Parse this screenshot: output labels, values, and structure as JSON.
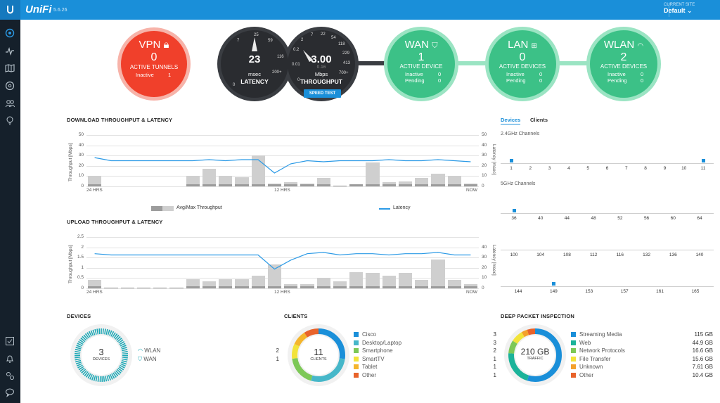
{
  "header": {
    "brand": "UniFi",
    "version": "5.6.26",
    "site_label": "CURRENT SITE",
    "site_value": "Default ⌄"
  },
  "gauges": {
    "vpn": {
      "title": "VPN",
      "value": "0",
      "subtitle": "ACTIVE TUNNELS",
      "inactive_label": "Inactive",
      "inactive_value": "1"
    },
    "latency": {
      "value": "23",
      "unit": "msec",
      "label": "LATENCY",
      "ticks": [
        "0",
        "7",
        "25",
        "59",
        "116",
        "200+"
      ],
      "needle_value": 23
    },
    "throughput": {
      "value": "3.00",
      "unit": "Mbps",
      "sub": "0.16",
      "label": "THROUGHPUT",
      "ticks": [
        "0",
        "0.01",
        "0.2",
        "2",
        "7",
        "22",
        "54",
        "118",
        "229",
        "413",
        "700+"
      ],
      "button": "SPEED TEST"
    },
    "wan": {
      "title": "WAN",
      "value": "1",
      "subtitle": "ACTIVE DEVICE",
      "inactive_label": "Inactive",
      "inactive_value": "0",
      "pending_label": "Pending",
      "pending_value": "0"
    },
    "lan": {
      "title": "LAN",
      "value": "0",
      "subtitle": "ACTIVE DEVICES",
      "inactive_label": "Inactive",
      "inactive_value": "0",
      "pending_label": "Pending",
      "pending_value": "0"
    },
    "wlan": {
      "title": "WLAN",
      "value": "2",
      "subtitle": "ACTIVE DEVICES",
      "inactive_label": "Inactive",
      "inactive_value": "0",
      "pending_label": "Pending",
      "pending_value": "0"
    }
  },
  "download": {
    "title": "DOWNLOAD THROUGHPUT & LATENCY",
    "ylabel": "Throughput [Mbps]",
    "y2label": "Latency [msec]",
    "yticks": [
      "50",
      "40",
      "30",
      "20",
      "10",
      "0"
    ],
    "xticks": [
      "24 HRS",
      "12 HRS",
      "NOW"
    ],
    "legend_avgmax": "Avg/Max Throughput",
    "legend_latency": "Latency"
  },
  "upload": {
    "title": "UPLOAD THROUGHPUT & LATENCY",
    "ylabel": "Throughput [Mbps]",
    "y2label": "Latency [msec]",
    "yticks": [
      "2.5",
      "2",
      "1.5",
      "1",
      "0.5",
      "0"
    ],
    "y2ticks": [
      "40",
      "30",
      "20",
      "10",
      "0"
    ],
    "xticks": [
      "24 HRS",
      "12 HRS",
      "NOW"
    ]
  },
  "chart_data": [
    {
      "type": "bar",
      "title": "DOWNLOAD THROUGHPUT & LATENCY",
      "ylabel": "Throughput [Mbps]",
      "y2label": "Latency [msec]",
      "ylim": [
        0,
        50
      ],
      "y2lim": [
        0,
        50
      ],
      "x_ticks": [
        "24 HRS",
        "12 HRS",
        "NOW"
      ],
      "series": [
        {
          "name": "Avg/Max Throughput",
          "values": [
            10,
            0,
            0,
            0,
            0,
            0,
            10,
            17,
            10,
            9,
            30,
            3,
            4,
            3,
            8,
            1,
            2,
            23,
            4,
            5,
            8,
            12,
            10,
            3
          ]
        },
        {
          "name": "Latency",
          "values": [
            28,
            25,
            25,
            25,
            25,
            25,
            25,
            26,
            25,
            26,
            26,
            13,
            22,
            25,
            24,
            25,
            25,
            25,
            26,
            25,
            25,
            26,
            25,
            24
          ]
        }
      ]
    },
    {
      "type": "bar",
      "title": "UPLOAD THROUGHPUT & LATENCY",
      "ylabel": "Throughput [Mbps]",
      "y2label": "Latency [msec]",
      "ylim": [
        0,
        2.5
      ],
      "y2lim": [
        0,
        40
      ],
      "x_ticks": [
        "24 HRS",
        "12 HRS",
        "NOW"
      ],
      "series": [
        {
          "name": "Avg/Max Throughput",
          "values": [
            0.4,
            0.05,
            0.05,
            0.05,
            0.05,
            0.05,
            0.45,
            0.35,
            0.45,
            0.45,
            0.6,
            1.15,
            0.2,
            0.2,
            0.5,
            0.35,
            0.8,
            0.75,
            0.6,
            0.75,
            0.4,
            1.4,
            0.4,
            0.2
          ]
        },
        {
          "name": "Latency",
          "values": [
            27,
            26,
            26,
            26,
            26,
            26,
            26,
            26,
            26,
            26,
            26,
            15,
            22,
            27,
            28,
            26,
            27,
            27,
            26,
            27,
            27,
            28,
            26,
            26
          ]
        }
      ]
    }
  ],
  "wifi": {
    "tab_devices": "Devices",
    "tab_clients": "Clients",
    "ch24_title": "2.4GHz Channels",
    "ch24": [
      "1",
      "2",
      "3",
      "4",
      "5",
      "6",
      "7",
      "8",
      "9",
      "10",
      "11"
    ],
    "ch5_title": "5GHz Channels",
    "ch5_row1": [
      "36",
      "40",
      "44",
      "48",
      "52",
      "56",
      "60",
      "64"
    ],
    "ch5_row2": [
      "100",
      "104",
      "108",
      "112",
      "116",
      "132",
      "136",
      "140"
    ],
    "ch5_row3": [
      "144",
      "149",
      "153",
      "157",
      "161",
      "165"
    ]
  },
  "devices": {
    "title": "DEVICES",
    "count": "3",
    "center_label": "DEVICES",
    "wlan_label": "WLAN",
    "wlan_value": "2",
    "wan_label": "WAN",
    "wan_value": "1",
    "colors": {
      "ring": "#1ba7b5"
    }
  },
  "clients": {
    "title": "CLIENTS",
    "count": "11",
    "center_label": "CLIENTS",
    "items": [
      {
        "label": "Cisco",
        "value": "3",
        "color": "#1a8fd9"
      },
      {
        "label": "Desktop/Laptop",
        "value": "3",
        "color": "#46b7c9"
      },
      {
        "label": "Smartphone",
        "value": "2",
        "color": "#7dc857"
      },
      {
        "label": "SmartTV",
        "value": "1",
        "color": "#f2e33a"
      },
      {
        "label": "Tablet",
        "value": "1",
        "color": "#f4b52c"
      },
      {
        "label": "Other",
        "value": "1",
        "color": "#e8632b"
      }
    ]
  },
  "dpi": {
    "title": "DEEP PACKET INSPECTION",
    "total": "210 GB",
    "center_label": "TRAFFIC",
    "items": [
      {
        "label": "Streaming Media",
        "value": "115 GB",
        "color": "#1a8fd9"
      },
      {
        "label": "Web",
        "value": "44.9 GB",
        "color": "#1bb39a"
      },
      {
        "label": "Network Protocols",
        "value": "16.6 GB",
        "color": "#7dc857"
      },
      {
        "label": "File Transfer",
        "value": "15.6 GB",
        "color": "#f2e33a"
      },
      {
        "label": "Unknown",
        "value": "7.61 GB",
        "color": "#f4a12c"
      },
      {
        "label": "Other",
        "value": "10.4 GB",
        "color": "#e8632b"
      }
    ]
  },
  "colors": {
    "vpn": "#f0402b",
    "green": "#3cc187",
    "dark": "#2a2c30",
    "accent": "#1a8fd9",
    "latency_line": "#2b9ae6"
  }
}
